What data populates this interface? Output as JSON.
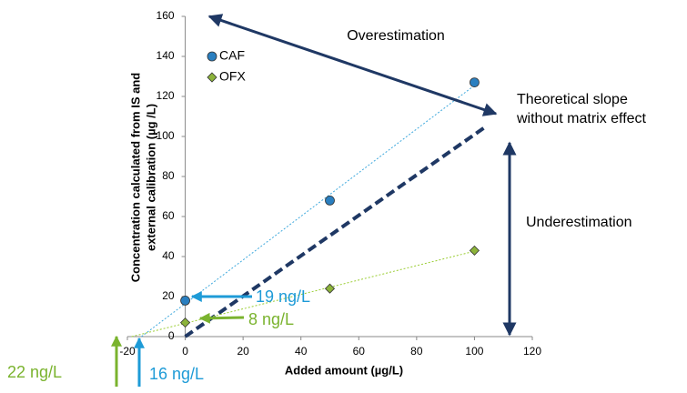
{
  "chart_data": {
    "type": "scatter",
    "x_label": "Added amount (µg/L)",
    "y_label": [
      "Concentration calculated from IS and",
      "external calibration (µg /L)"
    ],
    "xlim": [
      -20,
      120
    ],
    "xticks": [
      -20,
      0,
      20,
      40,
      60,
      80,
      100,
      120
    ],
    "ylim": [
      0,
      160
    ],
    "yticks": [
      0,
      20,
      40,
      60,
      80,
      100,
      120,
      140,
      160
    ],
    "series": [
      {
        "name": "CAF",
        "color": "#2a7fc0",
        "trend_color": "#3fa9dd",
        "marker": "circle",
        "x": [
          0,
          50,
          100
        ],
        "values": [
          18,
          68,
          127
        ]
      },
      {
        "name": "OFX",
        "color": "#8cb33a",
        "trend_color": "#9acd32",
        "marker": "diamond",
        "x": [
          0,
          50,
          100
        ],
        "values": [
          7,
          24,
          43
        ]
      }
    ],
    "reference_line": {
      "color": "#1f3864",
      "x": [
        0,
        104
      ],
      "values": [
        0,
        105
      ]
    },
    "annotations": {
      "overestimation": "Overestimation",
      "theoretical": [
        "Theoretical slope",
        "without matrix effect"
      ],
      "underestimation": "Underestimation",
      "caf_intercept": "19 ng/L",
      "ofx_intercept": "8 ng/L",
      "ofx_xintercept": "22 ng/L",
      "caf_xintercept": "16 ng/L"
    }
  }
}
